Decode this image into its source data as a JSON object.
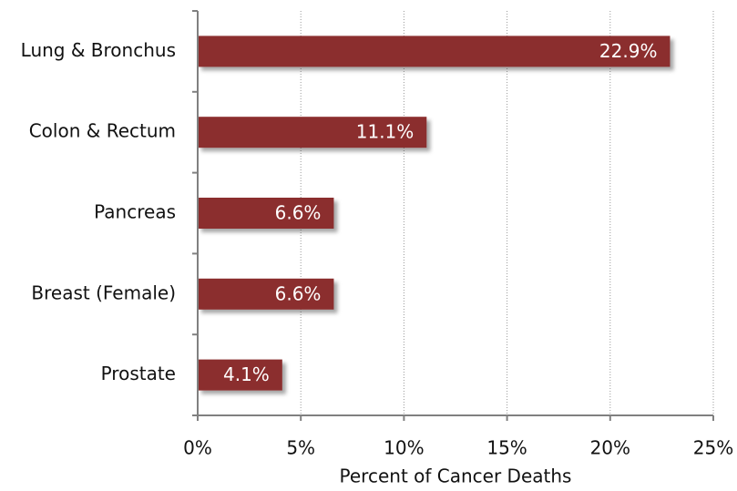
{
  "chart_data": {
    "type": "bar",
    "orientation": "horizontal",
    "x_label": "Percent of Cancer Deaths",
    "categories": [
      "Lung & Bronchus",
      "Colon & Rectum",
      "Pancreas",
      "Breast (Female)",
      "Prostate"
    ],
    "values": [
      22.9,
      11.1,
      6.6,
      6.6,
      4.1
    ],
    "value_labels": [
      "22.9%",
      "11.1%",
      "6.6%",
      "6.6%",
      "4.1%"
    ],
    "color": "#8b2e2e",
    "xlim": [
      0,
      25
    ],
    "xticks": [
      {
        "value": 0,
        "label": "0%"
      },
      {
        "value": 5,
        "label": "5%"
      },
      {
        "value": 10,
        "label": "10%"
      },
      {
        "value": 15,
        "label": "15%"
      },
      {
        "value": 20,
        "label": "20%"
      },
      {
        "value": 25,
        "label": "25%"
      }
    ],
    "grid": true
  }
}
